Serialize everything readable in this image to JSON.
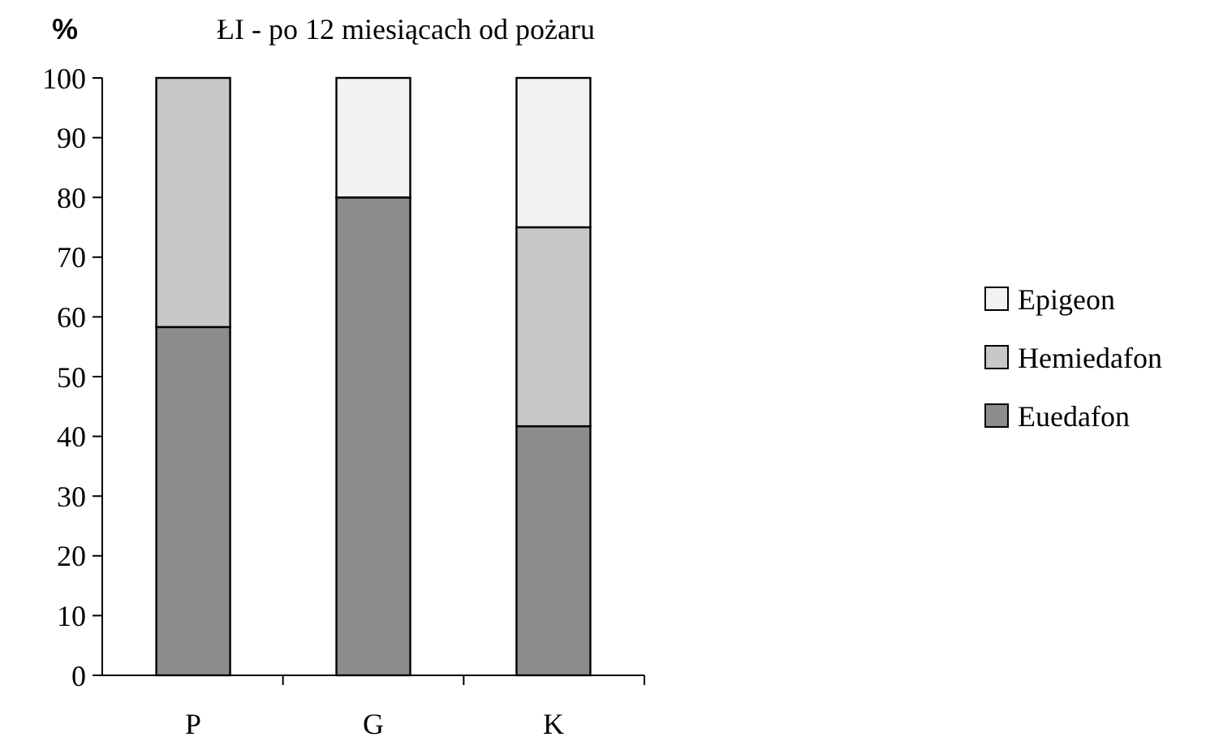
{
  "chart_data": {
    "type": "bar",
    "title": "ŁI - po 12 miesiącach od pożaru",
    "ylabel": "%",
    "categories": [
      "P",
      "G",
      "K"
    ],
    "stacked": true,
    "series": [
      {
        "name": "Euedafon",
        "color": "#8c8c8c",
        "values": [
          58.3,
          80,
          41.7
        ]
      },
      {
        "name": "Hemiedafon",
        "color": "#c8c8c8",
        "values": [
          41.7,
          0,
          33.3
        ]
      },
      {
        "name": "Epigeon",
        "color": "#f2f2f2",
        "values": [
          0,
          20,
          25
        ]
      }
    ],
    "ylim": [
      0,
      100
    ],
    "yticks": [
      0,
      10,
      20,
      30,
      40,
      50,
      60,
      70,
      80,
      90,
      100
    ],
    "grid": false,
    "legend": "right"
  }
}
